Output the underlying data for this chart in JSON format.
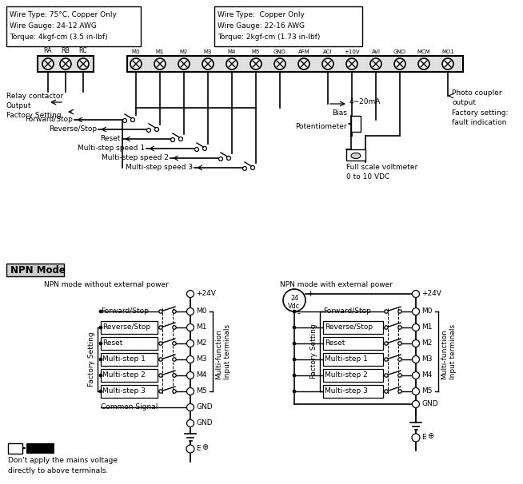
{
  "bg_color": "#ffffff",
  "lc": "#000000",
  "box1_text_lines": [
    "Wire Type: 75°C, Copper Only",
    "Wire Gauge: 24-12 AWG",
    "Torque: 4kgf-cm (3.5 in-lbf)"
  ],
  "box2_text_lines": [
    "Wire Type:  Copper Only",
    "Wire Gauge: 22-16 AWG",
    "Torque: 2kgf-cm (1.73 in-lbf)"
  ],
  "terminals_left": [
    "RA",
    "RB",
    "RC"
  ],
  "terminals_right": [
    "M0",
    "M1",
    "M2",
    "M3",
    "M4",
    "M5",
    "GND",
    "AFM",
    "ACI",
    "+10V",
    "AVI",
    "GND",
    "MCM",
    "MO1"
  ],
  "mid_labels": [
    "Forward/Stop",
    "Reverse/Stop",
    "Reset",
    "Multi-step speed 1",
    "Multi-step speed 2",
    "Multi-step speed 3"
  ],
  "npn_title": "NPN Mode",
  "npn_left_title": "NPN mode without external power",
  "npn_right_title": "NPN mode with external power",
  "npn_signals": [
    "Forward/Stop",
    "Reverse/Stop",
    "Reset",
    "Multi-step 1",
    "Multi-step 2",
    "Multi-step 3",
    "Common Signal"
  ],
  "npn_signals2": [
    "Forward/Stop",
    "Reverse/Stop",
    "Reset",
    "Multi-step 1",
    "Multi-step 2",
    "Multi-step 3"
  ],
  "npn_terminals": [
    "M0",
    "M1",
    "M2",
    "M3",
    "M4",
    "M5",
    "GND"
  ],
  "note_text": "Don't apply the mains voltage\ndirectly to above terminals."
}
